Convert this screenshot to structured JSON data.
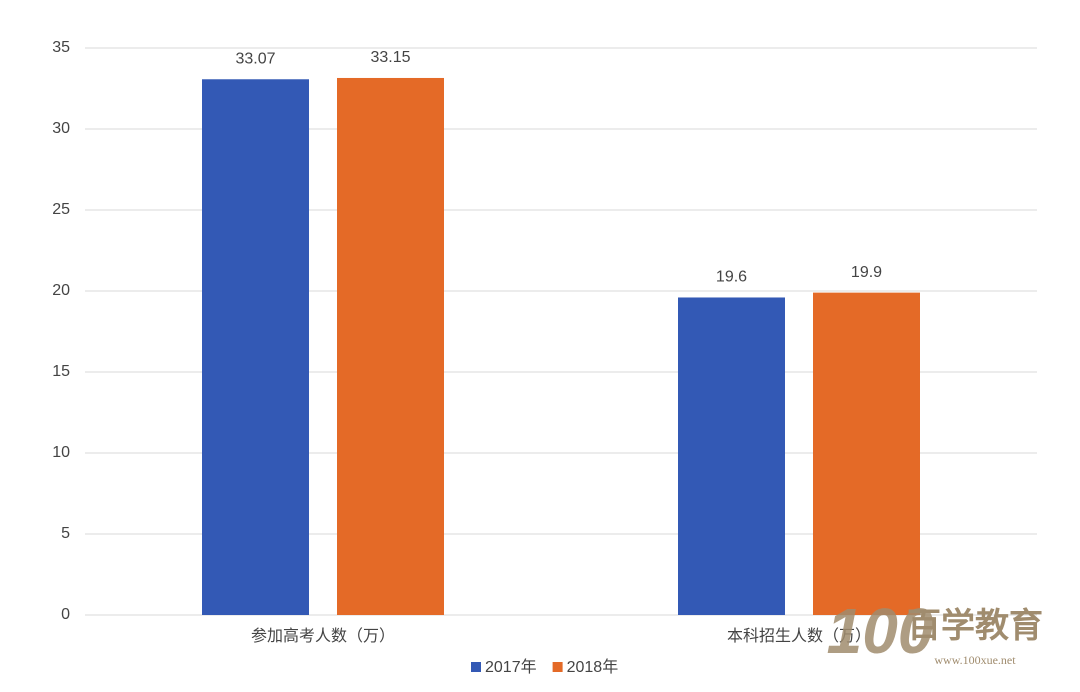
{
  "chart_data": {
    "type": "bar",
    "categories": [
      "参加高考人数（万）",
      "本科招生人数（万）"
    ],
    "series": [
      {
        "name": "2017年",
        "color": "#3359b5",
        "values": [
          33.07,
          19.6
        ]
      },
      {
        "name": "2018年",
        "color": "#e46a27",
        "values": [
          33.15,
          19.9
        ]
      }
    ],
    "ylim": [
      0,
      35
    ],
    "yticks": [
      0,
      5,
      10,
      15,
      20,
      25,
      30,
      35
    ],
    "grid": true,
    "legend": "bottom",
    "watermark": {
      "logo": "100",
      "name": "百学教育",
      "url": "www.100xue.net"
    }
  }
}
